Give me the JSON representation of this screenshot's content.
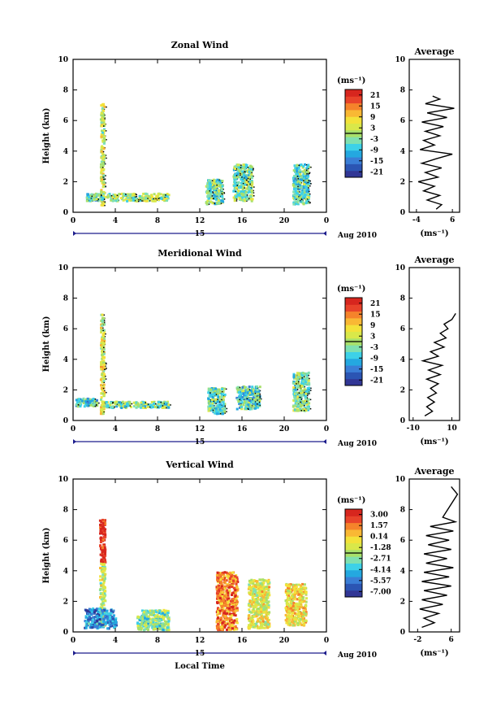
{
  "chart_data": [
    {
      "type": "heatmap",
      "title": "Zonal Wind",
      "xlabel": "",
      "ylabel": "Height (km)",
      "xlim": [
        0,
        24
      ],
      "ylim": [
        0,
        10
      ],
      "x_ticks": [
        "0",
        "4",
        "8",
        "12",
        "16",
        "20",
        "0"
      ],
      "y_ticks": [
        "0",
        "2",
        "4",
        "6",
        "8",
        "10"
      ],
      "day_label": "15",
      "date_label": "Aug 2010",
      "colorbar": {
        "unit": "(ms⁻¹)",
        "ticks": [
          "21",
          "15",
          "9",
          "3",
          "-3",
          "-9",
          "-15",
          "-21"
        ],
        "range": [
          -24,
          24
        ]
      },
      "clusters": [
        {
          "x": 2.7,
          "y0": 0.5,
          "y1": 7.2,
          "w": 0.35,
          "level": 0.55
        },
        {
          "x": 2.0,
          "y0": 0.8,
          "y1": 1.3,
          "w": 1.6,
          "level": 0.4
        },
        {
          "x": 6.0,
          "y0": 0.8,
          "y1": 1.3,
          "w": 6.0,
          "level": 0.5
        },
        {
          "x": 13.3,
          "y0": 0.6,
          "y1": 2.2,
          "w": 1.6,
          "level": 0.42
        },
        {
          "x": 16.0,
          "y0": 0.8,
          "y1": 3.2,
          "w": 1.8,
          "level": 0.45
        },
        {
          "x": 21.5,
          "y0": 0.6,
          "y1": 3.2,
          "w": 1.5,
          "level": 0.4
        }
      ],
      "profile": {
        "title": "Average",
        "xlabel": "(ms⁻¹)",
        "xlim": [
          -6,
          8
        ],
        "x_ticks": [
          "-4",
          "6"
        ],
        "y_ticks": [
          "0",
          "2",
          "4",
          "6",
          "8",
          "10"
        ],
        "ylim": [
          0,
          10
        ],
        "points": [
          [
            1.5,
            0.2
          ],
          [
            3.0,
            0.5
          ],
          [
            -1.0,
            0.8
          ],
          [
            2.5,
            1.1
          ],
          [
            -2.0,
            1.4
          ],
          [
            1.0,
            1.7
          ],
          [
            -3.5,
            2.0
          ],
          [
            2.0,
            2.3
          ],
          [
            -1.5,
            2.6
          ],
          [
            3.0,
            2.9
          ],
          [
            -2.5,
            3.2
          ],
          [
            1.5,
            3.5
          ],
          [
            6.0,
            3.8
          ],
          [
            -3.0,
            4.1
          ],
          [
            1.0,
            4.4
          ],
          [
            -2.0,
            4.7
          ],
          [
            2.5,
            5.0
          ],
          [
            -1.5,
            5.3
          ],
          [
            3.5,
            5.6
          ],
          [
            -2.5,
            5.9
          ],
          [
            4.5,
            6.2
          ],
          [
            -1.0,
            6.5
          ],
          [
            6.5,
            6.8
          ],
          [
            -1.5,
            7.1
          ],
          [
            2.5,
            7.4
          ],
          [
            0.5,
            7.6
          ]
        ]
      }
    },
    {
      "type": "heatmap",
      "title": "Meridional Wind",
      "xlabel": "",
      "ylabel": "Height (km)",
      "xlim": [
        0,
        24
      ],
      "ylim": [
        0,
        10
      ],
      "x_ticks": [
        "0",
        "4",
        "8",
        "12",
        "16",
        "20",
        "0"
      ],
      "y_ticks": [
        "0",
        "2",
        "4",
        "6",
        "8",
        "10"
      ],
      "day_label": "15",
      "date_label": "Aug 2010",
      "colorbar": {
        "unit": "(ms⁻¹)",
        "ticks": [
          "21",
          "15",
          "9",
          "3",
          "-3",
          "-9",
          "-15",
          "-21"
        ],
        "range": [
          -24,
          24
        ]
      },
      "clusters": [
        {
          "x": 2.7,
          "y0": 0.5,
          "y1": 7.0,
          "w": 0.35,
          "level": 0.6
        },
        {
          "x": 1.2,
          "y0": 1.0,
          "y1": 1.5,
          "w": 2.0,
          "level": 0.35
        },
        {
          "x": 6.0,
          "y0": 0.9,
          "y1": 1.3,
          "w": 6.0,
          "level": 0.45
        },
        {
          "x": 13.5,
          "y0": 0.5,
          "y1": 2.2,
          "w": 1.6,
          "level": 0.4
        },
        {
          "x": 16.5,
          "y0": 0.8,
          "y1": 2.3,
          "w": 2.2,
          "level": 0.38
        },
        {
          "x": 21.5,
          "y0": 0.7,
          "y1": 3.2,
          "w": 1.5,
          "level": 0.45
        }
      ],
      "profile": {
        "title": "Average",
        "xlabel": "(ms⁻¹)",
        "xlim": [
          -12,
          14
        ],
        "x_ticks": [
          "-10",
          "10"
        ],
        "y_ticks": [
          "0",
          "2",
          "4",
          "6",
          "8",
          "10"
        ],
        "ylim": [
          0,
          10
        ],
        "points": [
          [
            -4.0,
            0.3
          ],
          [
            0.0,
            0.6
          ],
          [
            -3.0,
            0.9
          ],
          [
            1.0,
            1.2
          ],
          [
            -2.5,
            1.5
          ],
          [
            2.0,
            1.8
          ],
          [
            -1.0,
            2.1
          ],
          [
            3.0,
            2.4
          ],
          [
            -3.0,
            2.7
          ],
          [
            4.0,
            3.0
          ],
          [
            -2.0,
            3.3
          ],
          [
            5.0,
            3.6
          ],
          [
            -5.0,
            3.9
          ],
          [
            3.0,
            4.2
          ],
          [
            -1.0,
            4.5
          ],
          [
            6.0,
            4.8
          ],
          [
            1.0,
            5.1
          ],
          [
            7.0,
            5.4
          ],
          [
            4.0,
            5.7
          ],
          [
            8.0,
            6.0
          ],
          [
            6.0,
            6.3
          ],
          [
            10.0,
            6.6
          ],
          [
            12.0,
            7.0
          ]
        ]
      }
    },
    {
      "type": "heatmap",
      "title": "Vertical Wind",
      "xlabel": "Local Time",
      "ylabel": "Height (km)",
      "xlim": [
        0,
        24
      ],
      "ylim": [
        0,
        10
      ],
      "x_ticks": [
        "0",
        "4",
        "8",
        "12",
        "16",
        "20",
        "0"
      ],
      "y_ticks": [
        "0",
        "2",
        "4",
        "6",
        "8",
        "10"
      ],
      "day_label": "15",
      "date_label": "Aug 2010",
      "colorbar": {
        "unit": "(ms⁻¹)",
        "ticks": [
          "3.00",
          "1.57",
          "0.14",
          "-1.28",
          "-2.71",
          "-4.14",
          "-5.57",
          "-7.00"
        ],
        "range": [
          -7.7,
          3.7
        ]
      },
      "clusters": [
        {
          "x": 2.7,
          "y0": 4.6,
          "y1": 7.4,
          "w": 0.5,
          "level": 0.97
        },
        {
          "x": 2.7,
          "y0": 0.5,
          "y1": 4.6,
          "w": 0.5,
          "level": 0.55
        },
        {
          "x": 2.5,
          "y0": 0.3,
          "y1": 1.6,
          "w": 3.0,
          "level": 0.22
        },
        {
          "x": 7.5,
          "y0": 0.2,
          "y1": 1.5,
          "w": 3.0,
          "level": 0.45
        },
        {
          "x": 14.5,
          "y0": 0.2,
          "y1": 4.0,
          "w": 2.0,
          "level": 0.8
        },
        {
          "x": 17.5,
          "y0": 0.3,
          "y1": 3.5,
          "w": 2.0,
          "level": 0.6
        },
        {
          "x": 21.0,
          "y0": 0.5,
          "y1": 3.2,
          "w": 2.0,
          "level": 0.65
        }
      ],
      "profile": {
        "title": "Average",
        "xlabel": "(ms⁻¹)",
        "xlim": [
          -4,
          8
        ],
        "x_ticks": [
          "-2",
          "6"
        ],
        "y_ticks": [
          "0",
          "2",
          "4",
          "6",
          "8",
          "10"
        ],
        "ylim": [
          0,
          10
        ],
        "points": [
          [
            -1.0,
            0.3
          ],
          [
            2.0,
            0.6
          ],
          [
            -0.5,
            0.9
          ],
          [
            3.0,
            1.2
          ],
          [
            -1.5,
            1.5
          ],
          [
            4.0,
            1.8
          ],
          [
            -1.0,
            2.1
          ],
          [
            5.0,
            2.4
          ],
          [
            -0.5,
            2.7
          ],
          [
            6.0,
            3.0
          ],
          [
            -1.0,
            3.3
          ],
          [
            5.5,
            3.6
          ],
          [
            -0.5,
            3.9
          ],
          [
            6.5,
            4.2
          ],
          [
            0.0,
            4.5
          ],
          [
            5.0,
            4.8
          ],
          [
            -0.5,
            5.1
          ],
          [
            6.0,
            5.4
          ],
          [
            0.5,
            5.7
          ],
          [
            5.5,
            6.0
          ],
          [
            0.0,
            6.3
          ],
          [
            6.5,
            6.6
          ],
          [
            1.0,
            6.9
          ],
          [
            7.0,
            7.2
          ],
          [
            4.0,
            7.5
          ],
          [
            7.5,
            9.0
          ],
          [
            6.0,
            9.5
          ]
        ]
      }
    }
  ],
  "colors": {
    "palette": [
      "#313695",
      "#2b55b3",
      "#3a7ed6",
      "#24a8e0",
      "#3dd1e8",
      "#7fe0b0",
      "#a8e06a",
      "#d9e84a",
      "#f3e23a",
      "#f9b834",
      "#f5832b",
      "#e8432a",
      "#d7261e"
    ]
  }
}
